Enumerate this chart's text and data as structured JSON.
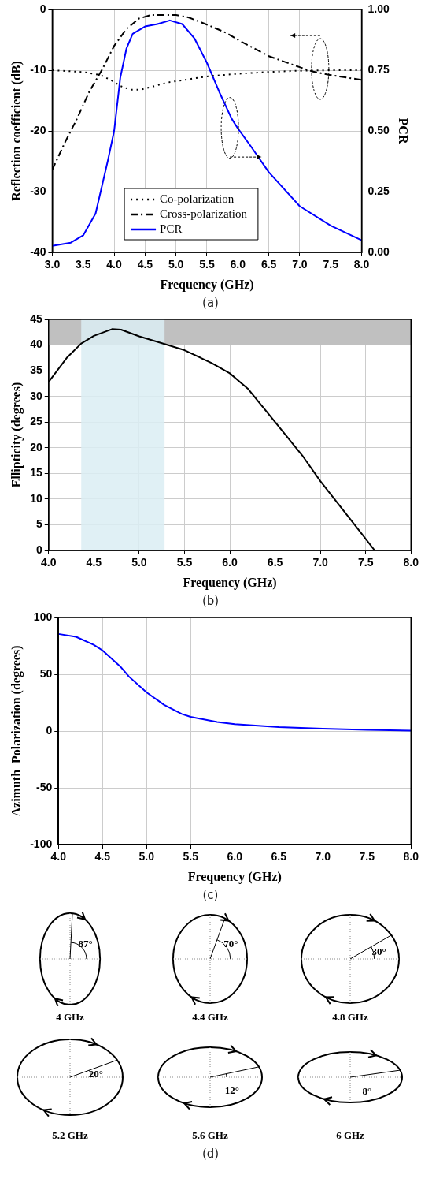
{
  "chart_data": [
    {
      "type": "line",
      "xlabel": "Frequency (GHz)",
      "ylabel": "Reflection coefficient (dB)",
      "y2label": "PCR",
      "annotations": [
        "(a)"
      ],
      "xlim": [
        3,
        8
      ],
      "ylim": [
        -40,
        0
      ],
      "y2lim": [
        0,
        1
      ],
      "xticks": [
        {
          "value": 3,
          "label": "3.0"
        },
        {
          "value": 3.5,
          "label": "3.5"
        },
        {
          "value": 4,
          "label": "4.0"
        },
        {
          "value": 4.5,
          "label": "4.5"
        },
        {
          "value": 5,
          "label": "5.0"
        },
        {
          "value": 5.5,
          "label": "5.5"
        },
        {
          "value": 6,
          "label": "6.0"
        },
        {
          "value": 6.5,
          "label": "6.5"
        },
        {
          "value": 7,
          "label": "7.0"
        },
        {
          "value": 7.5,
          "label": "7.5"
        },
        {
          "value": 8,
          "label": "8.0"
        }
      ],
      "yticks": [
        -40,
        -30,
        -20,
        -10,
        0
      ],
      "y2ticks": [
        {
          "value": 0,
          "label": "0.00"
        },
        {
          "value": 0.25,
          "label": "0.25"
        },
        {
          "value": 0.5,
          "label": "0.50"
        },
        {
          "value": 0.75,
          "label": "0.75"
        },
        {
          "value": 1,
          "label": "1.00"
        }
      ],
      "grid": true,
      "legend": "bottom",
      "marker": "none",
      "series": [
        {
          "name": "Co-polarization",
          "color": "#000000",
          "line_style": "dotted",
          "x": [
            3,
            3.5,
            3.78,
            3.98,
            4.1,
            4.26,
            4.43,
            4.88,
            5.52,
            5.99,
            6.47,
            6.94,
            7.5,
            8
          ],
          "values": [
            -10,
            -10.3,
            -10.8,
            -11.8,
            -12.6,
            -13.2,
            -13.2,
            -12,
            -11,
            -10.6,
            -10.3,
            -10.1,
            -10,
            -10
          ]
        },
        {
          "name": "Cross-polarization",
          "color": "#000000",
          "line_style": "dashed",
          "x": [
            3,
            3.2,
            3.4,
            3.6,
            3.8,
            4,
            4.2,
            4.4,
            4.6,
            5,
            5.2,
            5.5,
            5.8,
            6,
            6.5,
            7,
            7.2,
            7.5,
            8
          ],
          "values": [
            -26.4,
            -22,
            -18,
            -13.5,
            -10,
            -6,
            -3.2,
            -1.5,
            -0.9,
            -0.9,
            -1.3,
            -2.5,
            -3.8,
            -5,
            -7.7,
            -9.5,
            -10.2,
            -10.8,
            -11.6
          ]
        },
        {
          "name": "PCR",
          "color": "#0000ff",
          "line_style": "solid",
          "axis": "y2",
          "x": [
            3,
            3.3,
            3.5,
            3.7,
            3.9,
            4,
            4.1,
            4.2,
            4.3,
            4.5,
            4.7,
            4.9,
            5.1,
            5.3,
            5.5,
            5.7,
            5.9,
            6,
            6.2,
            6.5,
            7,
            7.5,
            8
          ],
          "values": [
            0.027,
            0.04,
            0.07,
            0.16,
            0.38,
            0.5,
            0.72,
            0.84,
            0.9,
            0.93,
            0.94,
            0.955,
            0.94,
            0.88,
            0.78,
            0.66,
            0.55,
            0.51,
            0.44,
            0.33,
            0.19,
            0.11,
            0.05
          ]
        }
      ]
    },
    {
      "type": "line",
      "xlabel": "Frequency (GHz)",
      "ylabel": "Ellipticity (degrees)",
      "annotations": [
        "(b)"
      ],
      "xlim": [
        4,
        8
      ],
      "ylim": [
        0,
        45
      ],
      "xticks": [
        {
          "value": 4,
          "label": "4.0"
        },
        {
          "value": 4.5,
          "label": "4.5"
        },
        {
          "value": 5,
          "label": "5.0"
        },
        {
          "value": 5.5,
          "label": "5.5"
        },
        {
          "value": 6,
          "label": "6.0"
        },
        {
          "value": 6.5,
          "label": "6.5"
        },
        {
          "value": 7,
          "label": "7.0"
        },
        {
          "value": 7.5,
          "label": "7.5"
        },
        {
          "value": 8,
          "label": "8.0"
        }
      ],
      "yticks": [
        0,
        5,
        10,
        15,
        20,
        25,
        30,
        35,
        40,
        45
      ],
      "grid": true,
      "marker": "none",
      "bands": [
        {
          "axis": "y",
          "from": 40,
          "to": 45,
          "color": "#c0c0c0"
        },
        {
          "axis": "x",
          "from": 4.36,
          "to": 5.28,
          "color": "#daedf3"
        }
      ],
      "series": [
        {
          "color": "#000000",
          "line_style": "solid",
          "x": [
            4,
            4.2,
            4.36,
            4.5,
            4.7,
            4.8,
            5,
            5.28,
            5.5,
            5.8,
            6,
            6.2,
            6.5,
            6.8,
            7,
            7.2,
            7.4,
            7.6
          ],
          "values": [
            32.8,
            37.5,
            40.3,
            41.8,
            43.1,
            43,
            41.7,
            40.2,
            39,
            36.5,
            34.5,
            31.5,
            25,
            18.5,
            13.5,
            9,
            4.5,
            0
          ]
        }
      ]
    },
    {
      "type": "line",
      "xlabel": "Frequency (GHz)",
      "ylabel": "Azimuth  Polarization (degrees)",
      "annotations": [
        "(c)"
      ],
      "xlim": [
        4,
        8
      ],
      "ylim": [
        -100,
        100
      ],
      "xticks": [
        {
          "value": 4,
          "label": "4.0"
        },
        {
          "value": 4.5,
          "label": "4.5"
        },
        {
          "value": 5,
          "label": "5.0"
        },
        {
          "value": 5.5,
          "label": "5.5"
        },
        {
          "value": 6,
          "label": "6.0"
        },
        {
          "value": 6.5,
          "label": "6.5"
        },
        {
          "value": 7,
          "label": "7.0"
        },
        {
          "value": 7.5,
          "label": "7.5"
        },
        {
          "value": 8,
          "label": "8.0"
        }
      ],
      "yticks": [
        -100,
        -50,
        0,
        50,
        100
      ],
      "grid": true,
      "marker": "none",
      "series": [
        {
          "color": "#0000ff",
          "line_style": "solid",
          "x": [
            4,
            4.2,
            4.4,
            4.5,
            4.7,
            4.8,
            5,
            5.2,
            5.4,
            5.5,
            5.8,
            6,
            6.5,
            7,
            7.5,
            8
          ],
          "values": [
            85.5,
            83,
            76,
            71,
            57,
            48,
            34,
            23,
            15,
            12.5,
            8,
            6,
            3.5,
            2,
            1,
            0.3
          ]
        }
      ]
    },
    {
      "type": "other",
      "annotations": [
        "87°",
        "4 GHz",
        "70°",
        "4.4 GHz",
        "30°",
        "4.8 GHz",
        "20°",
        "5.2 GHz",
        "12°",
        "5.6 GHz",
        "8°",
        "6 GHz",
        "(d)"
      ]
    }
  ]
}
